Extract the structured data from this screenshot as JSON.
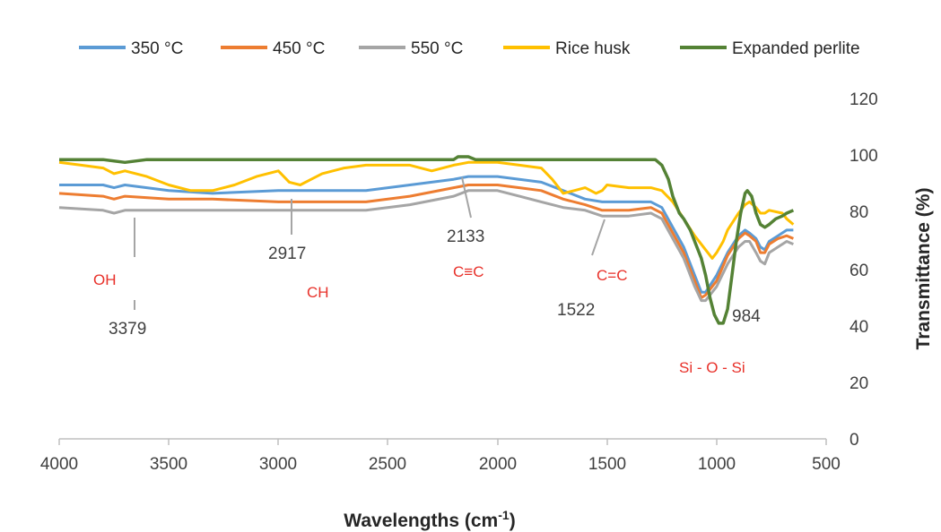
{
  "chart_data": {
    "type": "line",
    "xlabel": "Wavelengths (cm",
    "xlabel_sup": "-1",
    "xlabel_close": ")",
    "ylabel": "Transmittance (%)",
    "xlim": [
      4000,
      500
    ],
    "ylim": [
      0,
      120
    ],
    "x_ticks": [
      "4000",
      "3500",
      "3000",
      "2500",
      "2000",
      "1500",
      "1000",
      "500"
    ],
    "y_ticks": [
      "0",
      "20",
      "40",
      "60",
      "80",
      "100",
      "120"
    ],
    "y_axis_side": "right",
    "grid": false,
    "legend_position": "top",
    "series": [
      {
        "name": "350 °C",
        "color": "#5b9bd5",
        "points": [
          [
            4000,
            90
          ],
          [
            3800,
            90
          ],
          [
            3750,
            89
          ],
          [
            3700,
            90
          ],
          [
            3500,
            88
          ],
          [
            3300,
            87
          ],
          [
            3000,
            88
          ],
          [
            2600,
            88
          ],
          [
            2400,
            90
          ],
          [
            2200,
            92
          ],
          [
            2133,
            93
          ],
          [
            2000,
            93
          ],
          [
            1900,
            92
          ],
          [
            1800,
            91
          ],
          [
            1700,
            88
          ],
          [
            1600,
            85
          ],
          [
            1522,
            84
          ],
          [
            1400,
            84
          ],
          [
            1300,
            84
          ],
          [
            1250,
            82
          ],
          [
            1200,
            75
          ],
          [
            1150,
            68
          ],
          [
            1100,
            58
          ],
          [
            1070,
            52
          ],
          [
            1050,
            52
          ],
          [
            1000,
            58
          ],
          [
            950,
            66
          ],
          [
            900,
            72
          ],
          [
            870,
            74
          ],
          [
            850,
            73
          ],
          [
            820,
            71
          ],
          [
            800,
            68
          ],
          [
            780,
            67
          ],
          [
            760,
            70
          ],
          [
            720,
            72
          ],
          [
            680,
            74
          ],
          [
            650,
            74
          ]
        ]
      },
      {
        "name": "450 °C",
        "color": "#ed7d31",
        "points": [
          [
            4000,
            87
          ],
          [
            3800,
            86
          ],
          [
            3750,
            85
          ],
          [
            3700,
            86
          ],
          [
            3500,
            85
          ],
          [
            3300,
            85
          ],
          [
            3000,
            84
          ],
          [
            2600,
            84
          ],
          [
            2400,
            86
          ],
          [
            2200,
            89
          ],
          [
            2133,
            90
          ],
          [
            2000,
            90
          ],
          [
            1900,
            89
          ],
          [
            1800,
            88
          ],
          [
            1700,
            85
          ],
          [
            1600,
            83
          ],
          [
            1522,
            81
          ],
          [
            1400,
            81
          ],
          [
            1300,
            82
          ],
          [
            1250,
            80
          ],
          [
            1200,
            73
          ],
          [
            1150,
            66
          ],
          [
            1100,
            56
          ],
          [
            1070,
            50
          ],
          [
            1050,
            51
          ],
          [
            1000,
            56
          ],
          [
            950,
            65
          ],
          [
            900,
            71
          ],
          [
            870,
            73
          ],
          [
            850,
            72
          ],
          [
            820,
            70
          ],
          [
            800,
            66
          ],
          [
            780,
            66
          ],
          [
            760,
            69
          ],
          [
            720,
            71
          ],
          [
            680,
            72
          ],
          [
            650,
            71
          ]
        ]
      },
      {
        "name": "550 °C",
        "color": "#a5a5a5",
        "points": [
          [
            4000,
            82
          ],
          [
            3800,
            81
          ],
          [
            3750,
            80
          ],
          [
            3700,
            81
          ],
          [
            3500,
            81
          ],
          [
            3300,
            81
          ],
          [
            3000,
            81
          ],
          [
            2600,
            81
          ],
          [
            2400,
            83
          ],
          [
            2200,
            86
          ],
          [
            2133,
            88
          ],
          [
            2000,
            88
          ],
          [
            1900,
            86
          ],
          [
            1800,
            84
          ],
          [
            1700,
            82
          ],
          [
            1600,
            81
          ],
          [
            1522,
            79
          ],
          [
            1400,
            79
          ],
          [
            1300,
            80
          ],
          [
            1250,
            78
          ],
          [
            1200,
            71
          ],
          [
            1150,
            64
          ],
          [
            1100,
            54
          ],
          [
            1070,
            49
          ],
          [
            1050,
            49
          ],
          [
            1000,
            54
          ],
          [
            950,
            62
          ],
          [
            900,
            68
          ],
          [
            870,
            70
          ],
          [
            850,
            70
          ],
          [
            820,
            66
          ],
          [
            800,
            63
          ],
          [
            780,
            62
          ],
          [
            760,
            66
          ],
          [
            720,
            68
          ],
          [
            680,
            70
          ],
          [
            650,
            69
          ]
        ]
      },
      {
        "name": "Rice husk",
        "color": "#ffc000",
        "points": [
          [
            4000,
            98
          ],
          [
            3900,
            97
          ],
          [
            3800,
            96
          ],
          [
            3750,
            94
          ],
          [
            3700,
            95
          ],
          [
            3600,
            93
          ],
          [
            3500,
            90
          ],
          [
            3400,
            88
          ],
          [
            3300,
            88
          ],
          [
            3200,
            90
          ],
          [
            3100,
            93
          ],
          [
            3000,
            95
          ],
          [
            2950,
            91
          ],
          [
            2900,
            90
          ],
          [
            2850,
            92
          ],
          [
            2800,
            94
          ],
          [
            2700,
            96
          ],
          [
            2600,
            97
          ],
          [
            2400,
            97
          ],
          [
            2300,
            95
          ],
          [
            2200,
            97
          ],
          [
            2133,
            98
          ],
          [
            2000,
            98
          ],
          [
            1900,
            97
          ],
          [
            1800,
            96
          ],
          [
            1750,
            92
          ],
          [
            1700,
            87
          ],
          [
            1650,
            88
          ],
          [
            1600,
            89
          ],
          [
            1550,
            87
          ],
          [
            1522,
            88
          ],
          [
            1500,
            90
          ],
          [
            1400,
            89
          ],
          [
            1300,
            89
          ],
          [
            1250,
            88
          ],
          [
            1200,
            84
          ],
          [
            1150,
            78
          ],
          [
            1100,
            72
          ],
          [
            1050,
            67
          ],
          [
            1020,
            64
          ],
          [
            1000,
            66
          ],
          [
            970,
            70
          ],
          [
            950,
            74
          ],
          [
            900,
            80
          ],
          [
            870,
            83
          ],
          [
            850,
            84
          ],
          [
            820,
            82
          ],
          [
            800,
            80
          ],
          [
            780,
            80
          ],
          [
            760,
            81
          ],
          [
            700,
            80
          ],
          [
            680,
            78
          ],
          [
            650,
            76
          ]
        ]
      },
      {
        "name": "Expanded perlite",
        "color": "#548235",
        "points": [
          [
            4000,
            99
          ],
          [
            3800,
            99
          ],
          [
            3700,
            98
          ],
          [
            3600,
            99
          ],
          [
            3400,
            99
          ],
          [
            3000,
            99
          ],
          [
            2500,
            99
          ],
          [
            2200,
            99
          ],
          [
            2180,
            100
          ],
          [
            2133,
            100
          ],
          [
            2100,
            99
          ],
          [
            1500,
            99
          ],
          [
            1400,
            99
          ],
          [
            1300,
            99
          ],
          [
            1280,
            99
          ],
          [
            1250,
            97
          ],
          [
            1220,
            92
          ],
          [
            1200,
            86
          ],
          [
            1170,
            80
          ],
          [
            1150,
            78
          ],
          [
            1120,
            74
          ],
          [
            1100,
            70
          ],
          [
            1070,
            64
          ],
          [
            1050,
            58
          ],
          [
            1030,
            50
          ],
          [
            1010,
            44
          ],
          [
            990,
            41
          ],
          [
            970,
            41
          ],
          [
            950,
            46
          ],
          [
            930,
            58
          ],
          [
            910,
            70
          ],
          [
            890,
            80
          ],
          [
            870,
            87
          ],
          [
            860,
            88
          ],
          [
            840,
            86
          ],
          [
            820,
            80
          ],
          [
            800,
            76
          ],
          [
            780,
            75
          ],
          [
            760,
            76
          ],
          [
            730,
            78
          ],
          [
            700,
            79
          ],
          [
            680,
            80
          ],
          [
            650,
            81
          ]
        ]
      }
    ],
    "annotations": {
      "red": [
        "OH",
        "CH",
        "C≡C",
        "C=C",
        "Si - O - Si"
      ],
      "values": [
        "3379",
        "2917",
        "2133",
        "1522",
        "984"
      ]
    }
  }
}
